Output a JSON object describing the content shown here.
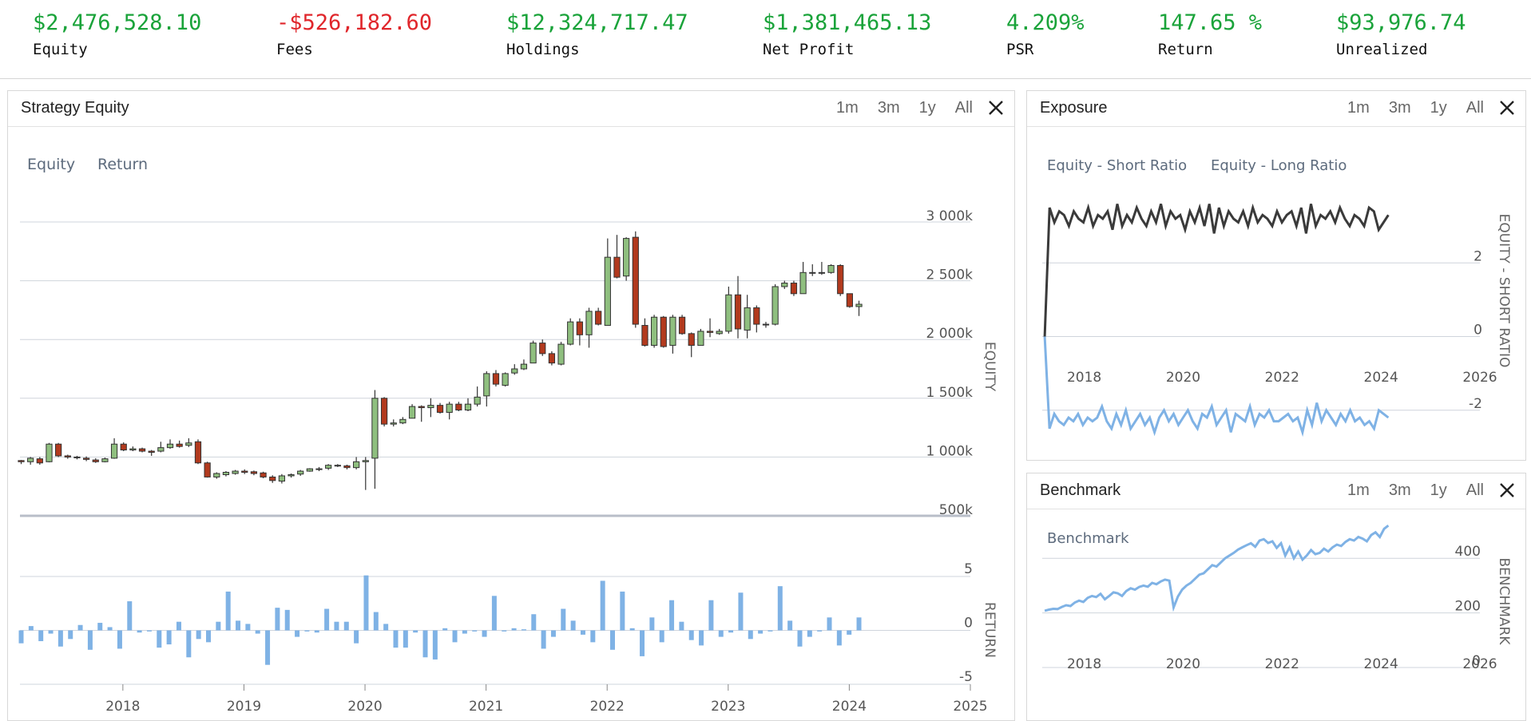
{
  "stats": [
    {
      "value": "$2,476,528.10",
      "label": "Equity",
      "color": "#1aa33a"
    },
    {
      "value": "-$526,182.60",
      "label": "Fees",
      "color": "#e0262b"
    },
    {
      "value": "$12,324,717.47",
      "label": "Holdings",
      "color": "#1aa33a"
    },
    {
      "value": "$1,381,465.13",
      "label": "Net Profit",
      "color": "#1aa33a"
    },
    {
      "value": "4.209%",
      "label": "PSR",
      "color": "#1aa33a"
    },
    {
      "value": "147.65 %",
      "label": "Return",
      "color": "#1aa33a"
    },
    {
      "value": "$93,976.74",
      "label": "Unrealized",
      "color": "#1aa33a"
    }
  ],
  "range_buttons": [
    "1m",
    "3m",
    "1y",
    "All"
  ],
  "panels": {
    "strategy": {
      "title": "Strategy Equity",
      "legend": [
        "Equity",
        "Return"
      ]
    },
    "exposure": {
      "title": "Exposure",
      "legend": [
        "Equity - Short Ratio",
        "Equity - Long Ratio"
      ]
    },
    "benchmark": {
      "title": "Benchmark",
      "legend": [
        "Benchmark"
      ]
    }
  },
  "colors": {
    "up": "#8fbf7f",
    "down": "#b23a1e",
    "bar": "#7fb2e5",
    "line_dark": "#3a3a3a",
    "line_light": "#7fb2e5",
    "grid": "#cfd4dc",
    "axis_text": "#555555"
  },
  "chart_data": [
    {
      "id": "equity",
      "type": "candlestick",
      "ylabel": "EQUITY",
      "ylim": [
        500,
        3000
      ],
      "yticks": [
        500,
        1000,
        1500,
        2000,
        2500,
        3000
      ],
      "ytick_labels": [
        "500k",
        "1 000k",
        "1 500k",
        "2 000k",
        "2 500k",
        "3 000k"
      ],
      "xlim": [
        2017.15,
        2025.0
      ],
      "xticks": [
        2018,
        2019,
        2020,
        2021,
        2022,
        2023,
        2024,
        2025
      ],
      "candles": [
        [
          970,
          960,
          940,
          975
        ],
        [
          960,
          990,
          935,
          1000
        ],
        [
          985,
          950,
          935,
          1000
        ],
        [
          960,
          1110,
          955,
          1120
        ],
        [
          1110,
          1010,
          1000,
          1120
        ],
        [
          1010,
          1000,
          985,
          1020
        ],
        [
          1000,
          1000,
          980,
          1010
        ],
        [
          990,
          980,
          965,
          1005
        ],
        [
          975,
          960,
          950,
          990
        ],
        [
          960,
          985,
          955,
          995
        ],
        [
          990,
          1110,
          985,
          1160
        ],
        [
          1110,
          1060,
          1050,
          1125
        ],
        [
          1060,
          1070,
          1050,
          1090
        ],
        [
          1070,
          1050,
          1040,
          1080
        ],
        [
          1050,
          1040,
          1010,
          1060
        ],
        [
          1050,
          1080,
          1040,
          1130
        ],
        [
          1080,
          1110,
          1070,
          1150
        ],
        [
          1110,
          1090,
          1080,
          1140
        ],
        [
          1100,
          1120,
          1085,
          1160
        ],
        [
          1130,
          950,
          940,
          1150
        ],
        [
          950,
          830,
          825,
          960
        ],
        [
          830,
          860,
          815,
          870
        ],
        [
          850,
          870,
          835,
          880
        ],
        [
          860,
          880,
          850,
          890
        ],
        [
          880,
          870,
          855,
          895
        ],
        [
          875,
          860,
          845,
          885
        ],
        [
          865,
          830,
          820,
          875
        ],
        [
          830,
          800,
          780,
          845
        ],
        [
          795,
          840,
          775,
          855
        ],
        [
          840,
          850,
          825,
          860
        ],
        [
          855,
          880,
          840,
          890
        ],
        [
          880,
          900,
          875,
          905
        ],
        [
          900,
          900,
          880,
          915
        ],
        [
          905,
          930,
          890,
          940
        ],
        [
          930,
          930,
          915,
          940
        ],
        [
          925,
          910,
          895,
          935
        ],
        [
          910,
          960,
          895,
          1000
        ],
        [
          960,
          970,
          720,
          1000
        ],
        [
          990,
          1500,
          730,
          1570
        ],
        [
          1500,
          1280,
          1260,
          1510
        ],
        [
          1280,
          1290,
          1260,
          1320
        ],
        [
          1290,
          1320,
          1280,
          1340
        ],
        [
          1330,
          1430,
          1330,
          1450
        ],
        [
          1430,
          1420,
          1300,
          1440
        ],
        [
          1420,
          1440,
          1340,
          1500
        ],
        [
          1440,
          1380,
          1370,
          1460
        ],
        [
          1380,
          1450,
          1320,
          1470
        ],
        [
          1450,
          1400,
          1390,
          1470
        ],
        [
          1400,
          1450,
          1390,
          1500
        ],
        [
          1450,
          1510,
          1430,
          1600
        ],
        [
          1520,
          1710,
          1430,
          1730
        ],
        [
          1710,
          1620,
          1600,
          1740
        ],
        [
          1610,
          1710,
          1600,
          1720
        ],
        [
          1715,
          1750,
          1700,
          1790
        ],
        [
          1750,
          1790,
          1740,
          1830
        ],
        [
          1800,
          1970,
          1800,
          1990
        ],
        [
          1970,
          1880,
          1860,
          2000
        ],
        [
          1880,
          1800,
          1780,
          1900
        ],
        [
          1790,
          1960,
          1780,
          1980
        ],
        [
          1960,
          2150,
          1950,
          2180
        ],
        [
          2150,
          2040,
          1950,
          2180
        ],
        [
          2040,
          2240,
          1930,
          2270
        ],
        [
          2240,
          2130,
          2120,
          2270
        ],
        [
          2120,
          2700,
          2120,
          2860
        ],
        [
          2700,
          2530,
          2520,
          2890
        ],
        [
          2540,
          2860,
          2500,
          2870
        ],
        [
          2870,
          2130,
          2100,
          2920
        ],
        [
          2120,
          1950,
          1940,
          2180
        ],
        [
          1950,
          2190,
          1930,
          2210
        ],
        [
          2190,
          1940,
          1930,
          2200
        ],
        [
          1950,
          2190,
          1880,
          2210
        ],
        [
          2190,
          2050,
          2040,
          2210
        ],
        [
          2050,
          1950,
          1850,
          2060
        ],
        [
          1950,
          2070,
          1950,
          2090
        ],
        [
          2070,
          2060,
          2020,
          2180
        ],
        [
          2050,
          2070,
          2040,
          2090
        ],
        [
          2070,
          2380,
          2050,
          2450
        ],
        [
          2380,
          2090,
          2010,
          2540
        ],
        [
          2080,
          2270,
          2010,
          2380
        ],
        [
          2270,
          2130,
          2060,
          2290
        ],
        [
          2130,
          2130,
          2100,
          2150
        ],
        [
          2130,
          2450,
          2120,
          2470
        ],
        [
          2450,
          2480,
          2430,
          2500
        ],
        [
          2480,
          2390,
          2370,
          2500
        ],
        [
          2390,
          2570,
          2390,
          2660
        ],
        [
          2570,
          2570,
          2540,
          2640
        ],
        [
          2570,
          2570,
          2550,
          2660
        ],
        [
          2570,
          2630,
          2560,
          2640
        ],
        [
          2630,
          2390,
          2370,
          2640
        ],
        [
          2390,
          2280,
          2270,
          2390
        ],
        [
          2280,
          2300,
          2200,
          2330
        ]
      ]
    },
    {
      "id": "return",
      "type": "bar",
      "ylabel": "RETURN",
      "ylim": [
        -5,
        5
      ],
      "yticks": [
        -5,
        0,
        5
      ],
      "values": [
        -1.2,
        0.4,
        -1.0,
        -0.3,
        -1.5,
        -0.8,
        0.5,
        -1.8,
        0.7,
        0.3,
        -1.7,
        2.7,
        -0.2,
        -0.1,
        -1.6,
        -1.3,
        0.8,
        -2.5,
        -0.8,
        -1.1,
        0.8,
        3.6,
        0.9,
        0.6,
        -0.3,
        -3.2,
        2.1,
        1.9,
        -0.6,
        -0.1,
        -0.2,
        2.0,
        0.8,
        0.8,
        -1.2,
        5.1,
        1.7,
        0.6,
        -1.6,
        -1.6,
        -0.2,
        -2.5,
        -2.7,
        0.2,
        -1.1,
        -0.3,
        -0.1,
        -0.6,
        3.2,
        -0.1,
        0.2,
        0.1,
        1.5,
        -1.7,
        -0.6,
        2.0,
        0.9,
        -0.4,
        -1.1,
        4.6,
        -1.8,
        3.6,
        0.2,
        -2.4,
        1.2,
        -1.1,
        2.8,
        0.8,
        -0.9,
        -1.4,
        2.8,
        -0.6,
        -0.2,
        3.5,
        -0.8,
        -0.3,
        -0.1,
        4.1,
        0.9,
        -1.5,
        -0.6,
        -0.1,
        1.2,
        -1.4,
        -0.4,
        1.2
      ]
    },
    {
      "id": "exposure",
      "type": "line",
      "ylabel": "EQUITY - SHORT RATIO",
      "ylim": [
        -4,
        4
      ],
      "yticks": [
        -4,
        -2,
        0,
        2
      ],
      "xlim": [
        2017.15,
        2026
      ],
      "xticks": [
        2018,
        2020,
        2022,
        2024,
        2026
      ],
      "series": [
        {
          "name": "Equity - Long Ratio",
          "values": [
            0.0,
            3.5,
            3.1,
            3.4,
            3.3,
            3.0,
            3.4,
            3.2,
            3.1,
            3.5,
            3.0,
            3.3,
            3.2,
            3.4,
            2.9,
            3.6,
            3.0,
            3.3,
            3.1,
            3.5,
            3.2,
            3.0,
            3.4,
            3.1,
            3.6,
            3.0,
            3.4,
            3.2,
            3.3,
            2.9,
            3.4,
            3.1,
            3.5,
            3.0,
            3.6,
            2.8,
            3.5,
            3.0,
            3.4,
            3.2,
            3.1,
            3.4,
            3.0,
            3.5,
            3.1,
            3.3,
            3.2,
            3.0,
            3.4,
            3.1,
            3.3,
            3.4,
            3.0,
            3.5,
            2.8,
            3.6,
            3.0,
            3.3,
            3.2,
            3.4,
            3.1,
            3.5,
            3.2,
            3.0,
            3.3,
            3.2,
            3.0,
            3.5,
            3.4,
            2.9,
            3.1,
            3.3
          ]
        },
        {
          "name": "Equity - Short Ratio",
          "values": [
            0.0,
            -2.5,
            -2.1,
            -2.3,
            -2.4,
            -2.2,
            -2.3,
            -2.1,
            -2.4,
            -2.2,
            -2.3,
            -2.2,
            -1.9,
            -2.3,
            -2.5,
            -2.1,
            -2.4,
            -2.0,
            -2.5,
            -2.3,
            -2.1,
            -2.4,
            -2.2,
            -2.6,
            -2.2,
            -2.0,
            -2.3,
            -2.1,
            -2.4,
            -2.2,
            -2.0,
            -2.3,
            -2.5,
            -2.1,
            -2.2,
            -1.9,
            -2.4,
            -2.2,
            -2.0,
            -2.6,
            -2.1,
            -2.2,
            -2.3,
            -1.9,
            -2.4,
            -2.1,
            -2.2,
            -2.0,
            -2.3,
            -2.3,
            -2.2,
            -2.1,
            -2.3,
            -2.2,
            -2.6,
            -2.0,
            -2.4,
            -1.8,
            -2.3,
            -2.0,
            -2.2,
            -2.4,
            -2.1,
            -2.3,
            -2.0,
            -2.3,
            -2.2,
            -2.4,
            -2.3,
            -2.5,
            -2.0,
            -2.1,
            -2.2
          ]
        }
      ]
    },
    {
      "id": "benchmark",
      "type": "line",
      "ylabel": "BENCHMARK",
      "ylim": [
        0,
        500
      ],
      "yticks": [
        0,
        200,
        400
      ],
      "xlim": [
        2017.15,
        2026
      ],
      "xticks": [
        2018,
        2020,
        2022,
        2024,
        2026
      ],
      "series": [
        {
          "name": "Benchmark",
          "values": [
            208,
            212,
            215,
            214,
            222,
            228,
            225,
            238,
            245,
            240,
            255,
            262,
            258,
            270,
            250,
            262,
            275,
            272,
            262,
            280,
            290,
            285,
            295,
            300,
            296,
            310,
            305,
            315,
            322,
            318,
            220,
            260,
            285,
            300,
            310,
            325,
            340,
            345,
            360,
            375,
            370,
            385,
            400,
            410,
            420,
            432,
            440,
            448,
            455,
            442,
            465,
            470,
            456,
            462,
            438,
            455,
            410,
            440,
            400,
            425,
            395,
            410,
            430,
            415,
            420,
            435,
            425,
            440,
            450,
            445,
            460,
            470,
            465,
            478,
            472,
            462,
            485,
            495,
            478,
            508,
            520
          ]
        }
      ]
    }
  ]
}
